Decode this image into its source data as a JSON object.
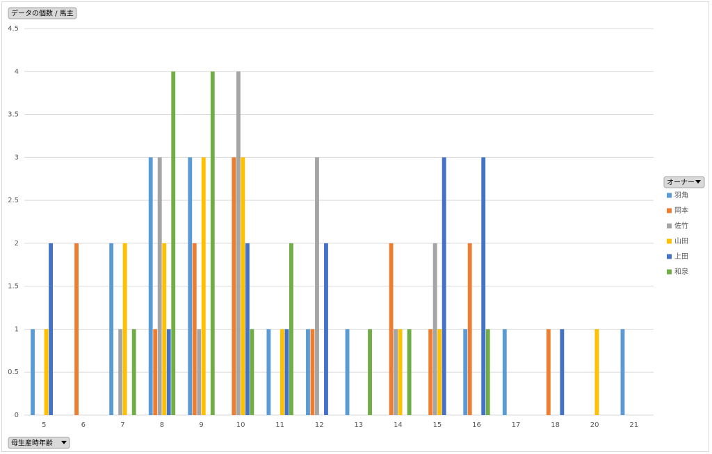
{
  "chart_data": {
    "type": "bar",
    "value_button": "データの個数 / 馬主",
    "legend_title": "オーナー",
    "axis_button": "母生産時年齢",
    "categories": [
      "5",
      "6",
      "7",
      "8",
      "9",
      "10",
      "11",
      "12",
      "13",
      "14",
      "15",
      "16",
      "17",
      "18",
      "20",
      "21"
    ],
    "series": [
      {
        "name": "羽角",
        "color": "#5b9bd5",
        "values": [
          1,
          null,
          2,
          3,
          3,
          null,
          1,
          1,
          1,
          null,
          null,
          1,
          1,
          null,
          null,
          1
        ]
      },
      {
        "name": "岡本",
        "color": "#ed7d31",
        "values": [
          null,
          2,
          null,
          1,
          2,
          3,
          null,
          1,
          null,
          2,
          1,
          2,
          null,
          1,
          null,
          null
        ]
      },
      {
        "name": "佐竹",
        "color": "#a5a5a5",
        "values": [
          null,
          null,
          1,
          3,
          1,
          4,
          null,
          3,
          null,
          1,
          2,
          null,
          null,
          null,
          null,
          null
        ]
      },
      {
        "name": "山田",
        "color": "#ffc000",
        "values": [
          1,
          null,
          2,
          2,
          3,
          3,
          1,
          null,
          null,
          1,
          1,
          null,
          null,
          null,
          1,
          null
        ]
      },
      {
        "name": "上田",
        "color": "#4472c4",
        "values": [
          2,
          null,
          null,
          1,
          null,
          2,
          1,
          2,
          null,
          null,
          3,
          3,
          null,
          1,
          null,
          null
        ]
      },
      {
        "name": "和泉",
        "color": "#70ad47",
        "values": [
          null,
          null,
          1,
          4,
          4,
          1,
          2,
          null,
          1,
          1,
          null,
          1,
          null,
          null,
          null,
          null
        ]
      }
    ],
    "ylim": [
      0,
      4.5
    ],
    "yticks": [
      0,
      0.5,
      1,
      1.5,
      2,
      2.5,
      3,
      3.5,
      4,
      4.5
    ],
    "grid": true
  }
}
